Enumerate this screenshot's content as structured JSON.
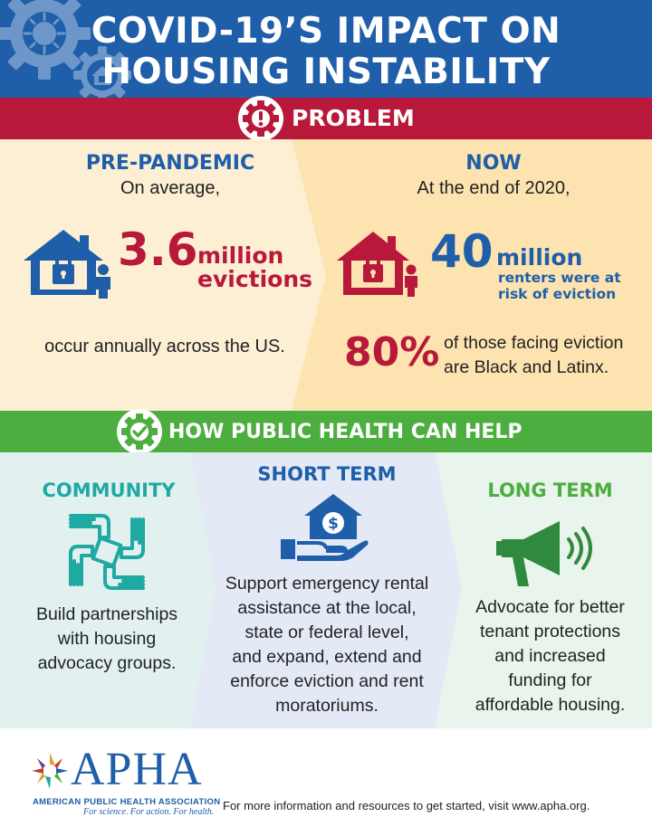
{
  "header": {
    "title_line1": "COVID-19’S IMPACT ON",
    "title_line2": "HOUSING INSTABILITY"
  },
  "problem": {
    "label": "PROBLEM",
    "pre_pandemic": {
      "title": "PRE-PANDEMIC",
      "intro": "On average,",
      "figure": "3.6",
      "figure_unit": "million",
      "figure_desc": "evictions",
      "caption": "occur annually across the US."
    },
    "now": {
      "title": "NOW",
      "intro": "At the end of 2020,",
      "figure": "40",
      "figure_unit": "million",
      "figure_desc_line1": "renters were at",
      "figure_desc_line2": "risk of eviction",
      "percent": "80%",
      "percent_desc_line1": "of those facing eviction",
      "percent_desc_line2": "are Black and Latinx."
    }
  },
  "help": {
    "label": "HOW PUBLIC HEALTH CAN HELP",
    "community": {
      "title": "COMMUNITY",
      "lines": [
        "Build partnerships",
        "with housing",
        "advocacy groups."
      ]
    },
    "short_term": {
      "title": "SHORT TERM",
      "lines": [
        "Support emergency rental",
        "assistance at the local,",
        "state or federal level,",
        "and expand, extend and",
        "enforce eviction and rent",
        "moratoriums."
      ]
    },
    "long_term": {
      "title": "LONG TERM",
      "lines": [
        "Advocate for better",
        "tenant protections",
        "and increased",
        "funding for",
        "affordable housing."
      ]
    }
  },
  "footer": {
    "logo_text": "APHA",
    "org_name": "AMERICAN PUBLIC HEALTH ASSOCIATION",
    "tagline": "For science. For action. For health.",
    "info": "For more information and resources to get started, visit www.apha.org."
  },
  "colors": {
    "blue": "#1f5ea8",
    "red": "#b8183a",
    "green": "#4cae3f",
    "teal": "#1fa9a3",
    "cream": "#fcefd4",
    "peach": "#fde3b0"
  },
  "icons": [
    "virus-gear-icon",
    "house-gear-icon",
    "alert-gear-icon",
    "locked-house-person-icon",
    "check-gear-icon",
    "hands-circle-icon",
    "house-dollar-hand-icon",
    "megaphone-icon"
  ]
}
